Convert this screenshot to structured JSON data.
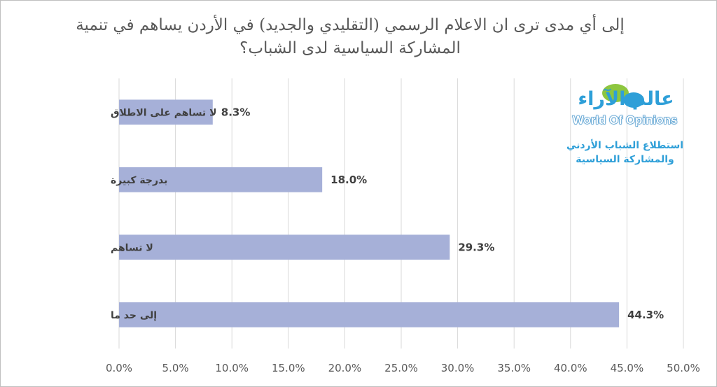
{
  "title_lines": [
    "إلى أي مدى ترى ان الاعلام الرسمي (التقليدي والجديد) في الأردن يساهم في تنمية",
    "المشاركة السياسية لدى الشباب؟"
  ],
  "logo": {
    "arabic_name": "عالم الآراء",
    "english_name": "World Of Opinions",
    "subtitle_line1": "استطلاع الشباب الأردني",
    "subtitle_line2": "والمشاركة السياسية"
  },
  "colors": {
    "bar": "#a6b0d8",
    "gridline": "#d9d9d9",
    "axis_text": "#595959",
    "label_text": "#404040",
    "logo_blue": "#2e9fd8",
    "logo_green": "#8dc63f"
  },
  "chart_data": {
    "type": "bar",
    "orientation": "horizontal",
    "title": "إلى أي مدى ترى ان الاعلام الرسمي (التقليدي والجديد) في الأردن يساهم في تنمية المشاركة السياسية لدى الشباب؟",
    "categories": [
      "لا تساهم على الاطلاق",
      "بدرجة كبيرة",
      "لا تساهم",
      "إلى حد ما"
    ],
    "values": [
      8.3,
      18.0,
      29.3,
      44.3
    ],
    "data_labels": [
      "8.3%",
      "18.0%",
      "29.3%",
      "44.3%"
    ],
    "xlim": [
      0,
      50
    ],
    "x_ticks": [
      "0.0%",
      "5.0%",
      "10.0%",
      "15.0%",
      "20.0%",
      "25.0%",
      "30.0%",
      "35.0%",
      "40.0%",
      "45.0%",
      "50.0%"
    ],
    "grid": true,
    "xlabel": "",
    "ylabel": ""
  }
}
